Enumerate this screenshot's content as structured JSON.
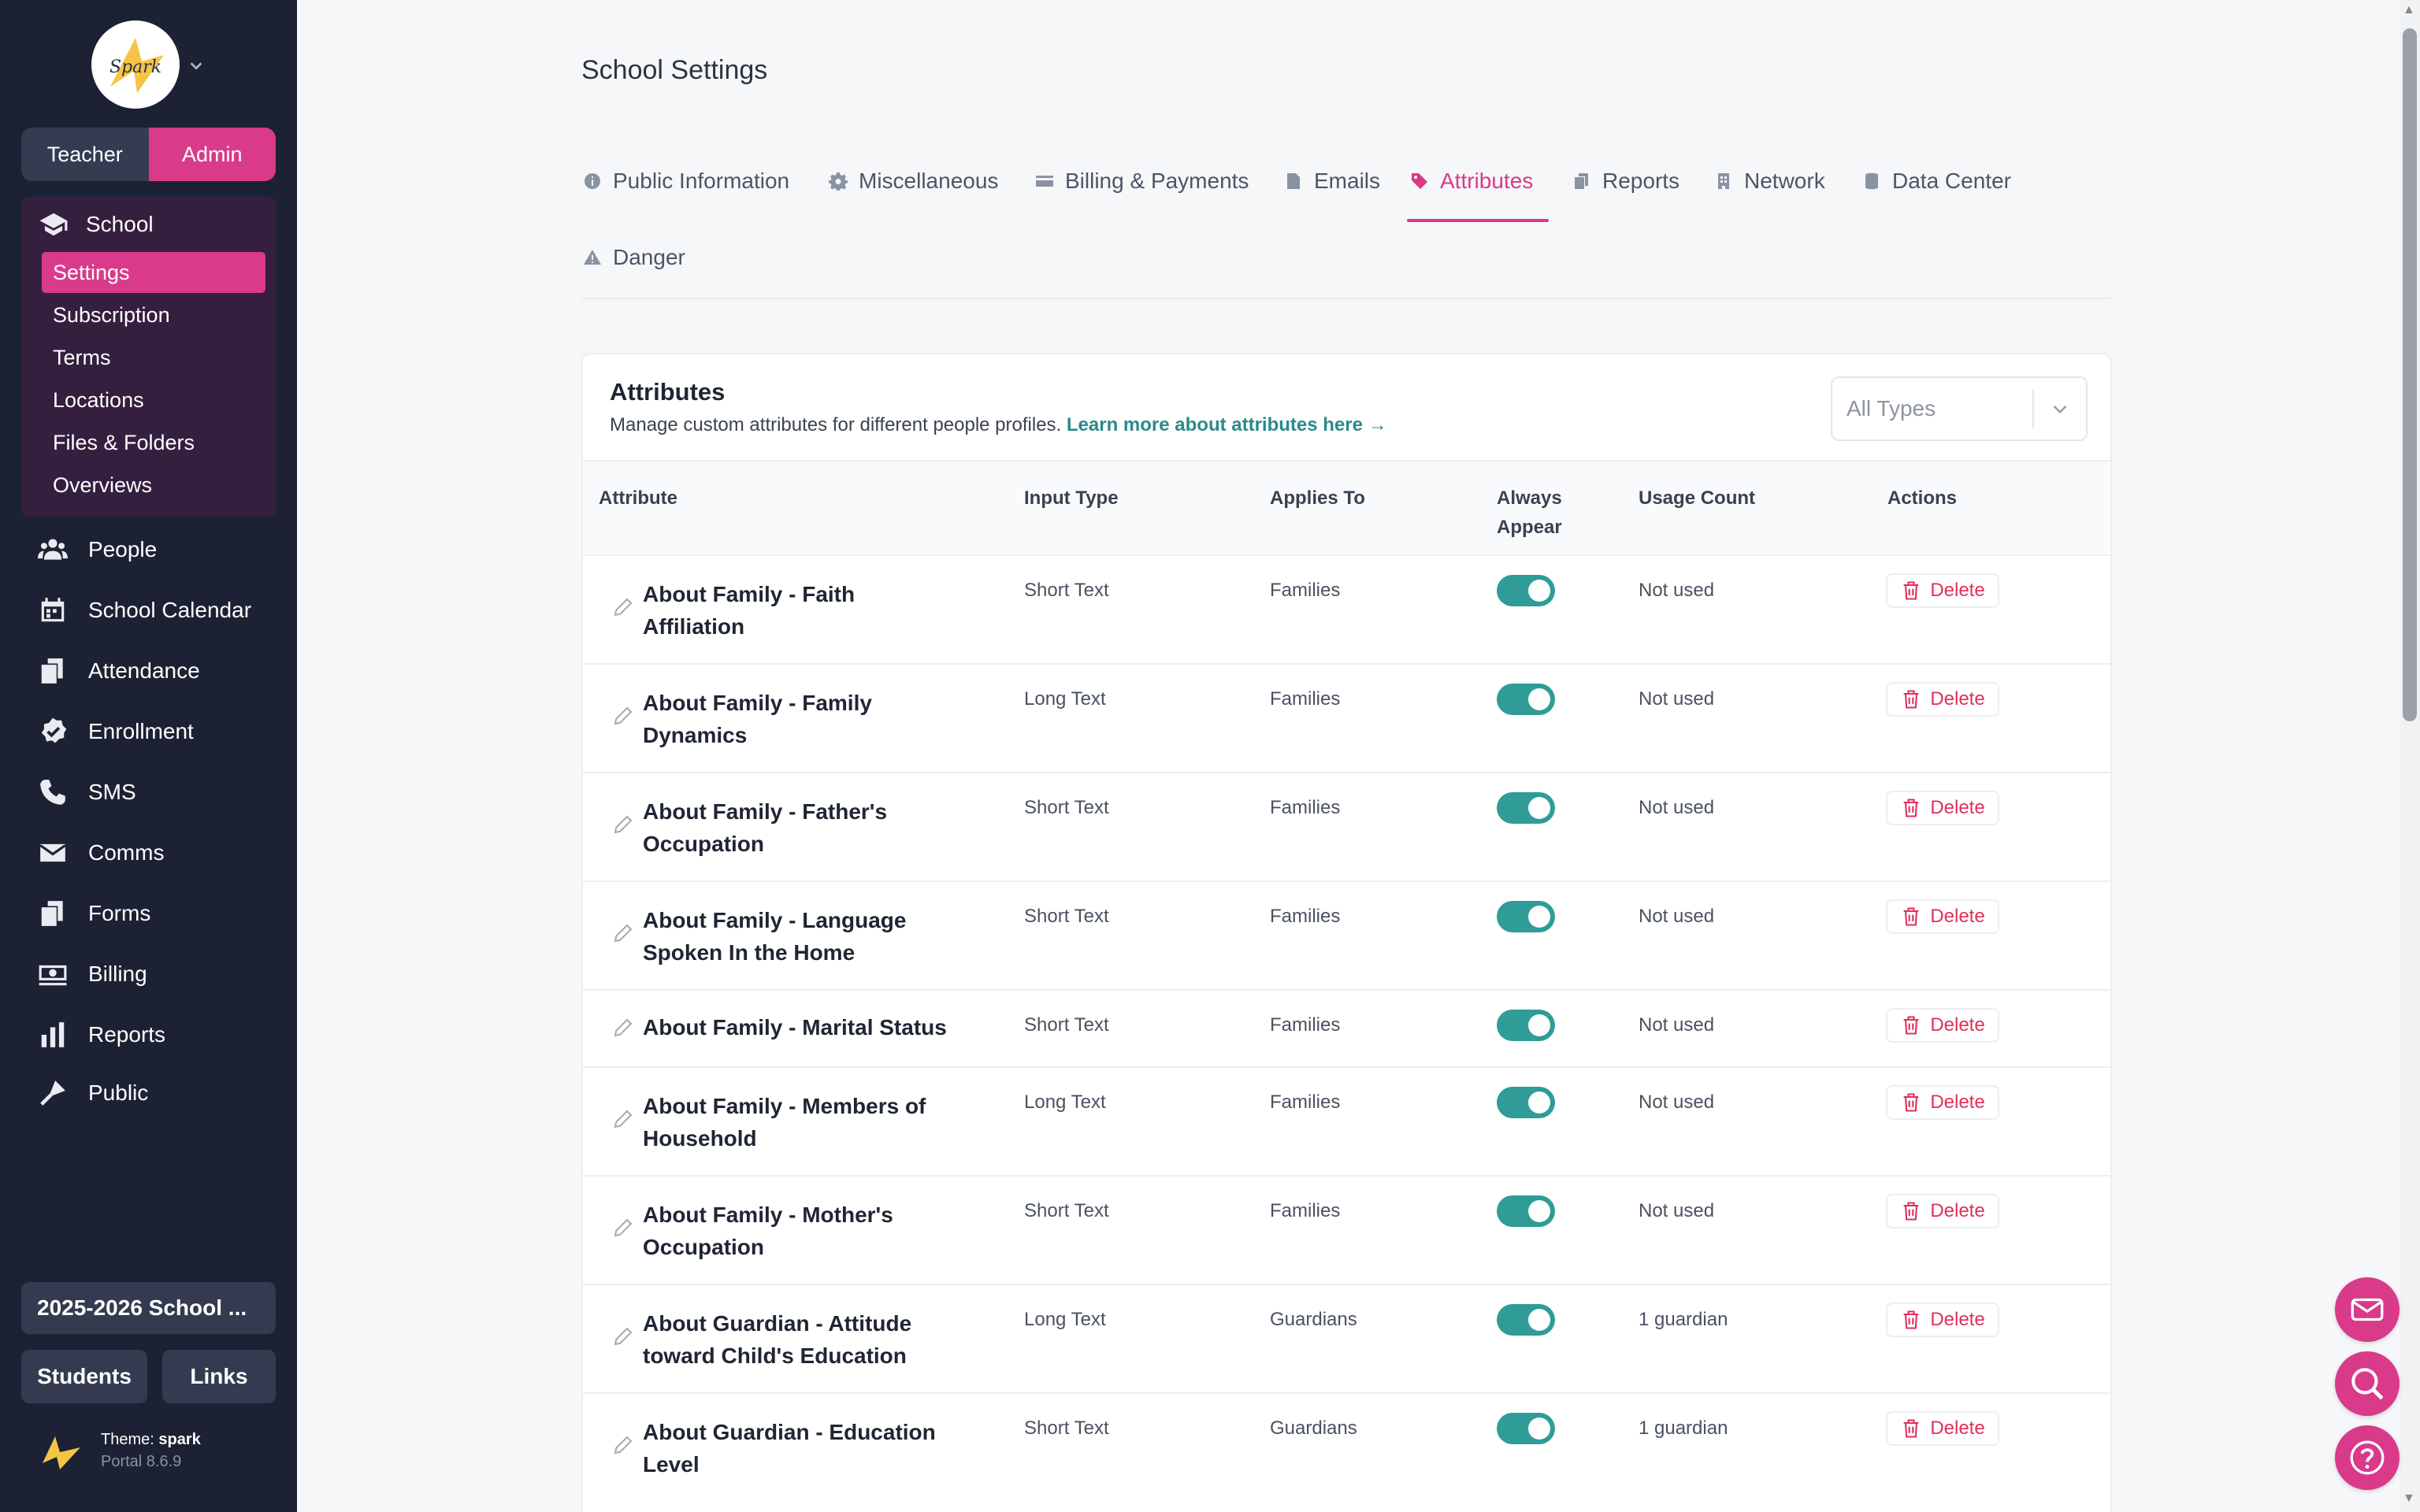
{
  "colors": {
    "accent": "#d93a8a",
    "sidebar_bg": "#1c2233",
    "toggle_on": "#2f9c97",
    "delete": "#e0305a",
    "link": "#2b8a8a"
  },
  "sidebar": {
    "logo_text": "Spark",
    "roles": {
      "teacher": "Teacher",
      "admin": "Admin",
      "active": "Admin"
    },
    "school": {
      "label": "School",
      "items": [
        "Settings",
        "Subscription",
        "Terms",
        "Locations",
        "Files & Folders",
        "Overviews"
      ],
      "active": "Settings"
    },
    "nav": [
      {
        "label": "People",
        "icon": "people-icon"
      },
      {
        "label": "School Calendar",
        "icon": "calendar-icon"
      },
      {
        "label": "Attendance",
        "icon": "attendance-icon"
      },
      {
        "label": "Enrollment",
        "icon": "enrollment-check-icon"
      },
      {
        "label": "SMS",
        "icon": "phone-icon"
      },
      {
        "label": "Comms",
        "icon": "envelope-icon"
      },
      {
        "label": "Forms",
        "icon": "forms-icon"
      },
      {
        "label": "Billing",
        "icon": "money-icon"
      },
      {
        "label": "Reports",
        "icon": "bar-chart-icon"
      },
      {
        "label": "Public",
        "icon": "megaphone-icon"
      }
    ],
    "year": "2025-2026 School ...",
    "students": "Students",
    "links": "Links",
    "theme_label": "Theme:",
    "theme_name": "spark",
    "version": "Portal 8.6.9"
  },
  "page": {
    "title": "School Settings"
  },
  "tabs": [
    {
      "label": "Public Information",
      "icon": "info-icon"
    },
    {
      "label": "Miscellaneous",
      "icon": "gear-icon"
    },
    {
      "label": "Billing & Payments",
      "icon": "credit-card-icon"
    },
    {
      "label": "Emails",
      "icon": "document-icon"
    },
    {
      "label": "Attributes",
      "icon": "tag-icon"
    },
    {
      "label": "Reports",
      "icon": "reports-icon"
    },
    {
      "label": "Network",
      "icon": "building-icon"
    },
    {
      "label": "Data Center",
      "icon": "database-icon"
    },
    {
      "label": "Danger",
      "icon": "warning-icon"
    }
  ],
  "active_tab": "Attributes",
  "card": {
    "title": "Attributes",
    "description": "Manage custom attributes for different people profiles.",
    "learn_more": "Learn more about attributes here →",
    "type_filter": "All Types"
  },
  "table": {
    "headers": {
      "attribute": "Attribute",
      "input_type": "Input Type",
      "applies_to": "Applies To",
      "always_1": "Always",
      "always_2": "Appear",
      "usage": "Usage Count",
      "actions": "Actions"
    },
    "delete_label": "Delete",
    "rows": [
      {
        "line1": "About Family - Faith",
        "line2": "Affiliation",
        "input_type": "Short Text",
        "applies_to": "Families",
        "always_appear": true,
        "usage": "Not used"
      },
      {
        "line1": "About Family - Family",
        "line2": "Dynamics",
        "input_type": "Long Text",
        "applies_to": "Families",
        "always_appear": true,
        "usage": "Not used"
      },
      {
        "line1": "About Family - Father's",
        "line2": "Occupation",
        "input_type": "Short Text",
        "applies_to": "Families",
        "always_appear": true,
        "usage": "Not used"
      },
      {
        "line1": "About Family - Language",
        "line2": "Spoken In the Home",
        "input_type": "Short Text",
        "applies_to": "Families",
        "always_appear": true,
        "usage": "Not used"
      },
      {
        "line1": "About Family - Marital Status",
        "line2": "",
        "input_type": "Short Text",
        "applies_to": "Families",
        "always_appear": true,
        "usage": "Not used"
      },
      {
        "line1": "About Family - Members of",
        "line2": "Household",
        "input_type": "Long Text",
        "applies_to": "Families",
        "always_appear": true,
        "usage": "Not used"
      },
      {
        "line1": "About Family - Mother's",
        "line2": "Occupation",
        "input_type": "Short Text",
        "applies_to": "Families",
        "always_appear": true,
        "usage": "Not used"
      },
      {
        "line1": "About Guardian - Attitude",
        "line2": "toward Child's Education",
        "input_type": "Long Text",
        "applies_to": "Guardians",
        "always_appear": true,
        "usage": "1 guardian"
      },
      {
        "line1": "About Guardian - Education",
        "line2": "Level",
        "input_type": "Short Text",
        "applies_to": "Guardians",
        "always_appear": true,
        "usage": "1 guardian"
      }
    ]
  },
  "fabs": [
    {
      "icon": "mail-icon"
    },
    {
      "icon": "search-icon"
    },
    {
      "icon": "help-icon"
    }
  ]
}
